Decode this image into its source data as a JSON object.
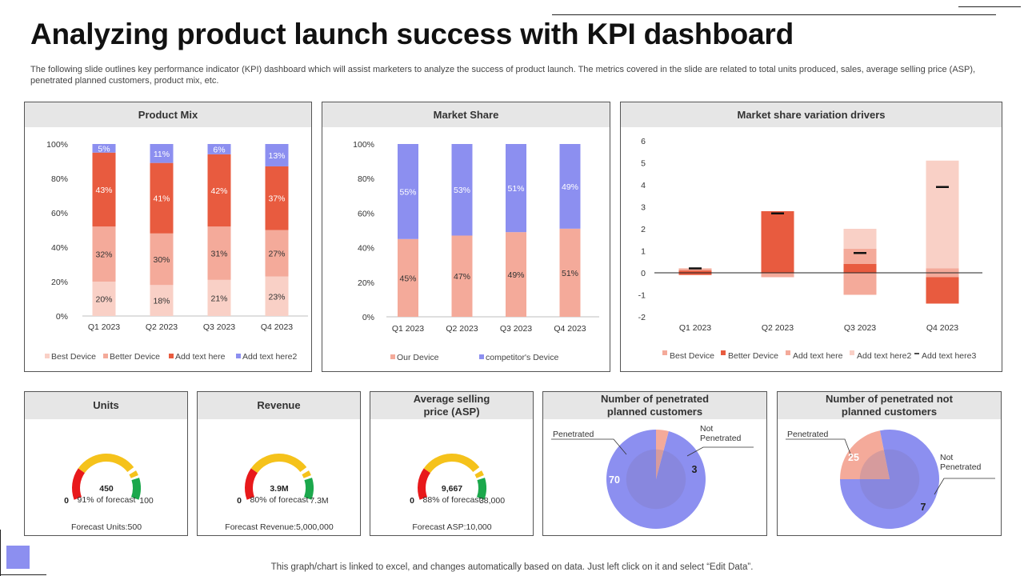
{
  "title": "Analyzing product launch success with KPI dashboard",
  "description": "The following slide outlines key performance indicator (KPI) dashboard which will assist marketers to analyze the success of product launch. The metrics covered in the slide are related to total units produced, sales, average selling price (ASP), penetrated planned customers, product mix, etc.",
  "footnote": "This graph/chart is linked to excel,  and changes automatically based on data. Just left click on it and select “Edit Data”.",
  "colors": {
    "best": "#f9d0c6",
    "better": "#f4aa9a",
    "text": "#e85b3f",
    "text2": "#8c8ff0",
    "gauge_red": "#e8191b",
    "gauge_yellow": "#f5c21b",
    "gauge_green": "#1ba84c",
    "header_bg": "#e6e6e6"
  },
  "chart_data": [
    {
      "id": "product-mix",
      "type": "bar",
      "stacked": true,
      "title": "Product Mix",
      "categories": [
        "Q1 2023",
        "Q2 2023",
        "Q3 2023",
        "Q4 2023"
      ],
      "series": [
        {
          "name": "Best Device",
          "values": [
            20,
            18,
            21,
            23
          ],
          "labels": [
            "20%",
            "18%",
            "21%",
            "23%"
          ],
          "color": "#f9d0c6"
        },
        {
          "name": "Better Device",
          "values": [
            32,
            30,
            31,
            27
          ],
          "labels": [
            "32%",
            "30%",
            "31%",
            "27%"
          ],
          "color": "#f4aa9a"
        },
        {
          "name": "Add text here",
          "values": [
            43,
            41,
            42,
            37
          ],
          "labels": [
            "43%",
            "41%",
            "42%",
            "37%"
          ],
          "color": "#e85b3f"
        },
        {
          "name": "Add text here2",
          "values": [
            5,
            11,
            6,
            13
          ],
          "labels": [
            "5%",
            "11%",
            "6%",
            "13%"
          ],
          "color": "#8c8ff0"
        }
      ],
      "y_ticks": [
        "0%",
        "20%",
        "40%",
        "60%",
        "80%",
        "100%"
      ],
      "ylim": [
        0,
        100
      ],
      "legend": "bottom"
    },
    {
      "id": "market-share",
      "type": "bar",
      "stacked": true,
      "title": "Market Share",
      "categories": [
        "Q1 2023",
        "Q2 2023",
        "Q3 2023",
        "Q4 2023"
      ],
      "series": [
        {
          "name": "Our Device",
          "values": [
            45,
            47,
            49,
            51
          ],
          "labels": [
            "45%",
            "47%",
            "49%",
            "51%"
          ],
          "color": "#f4aa9a"
        },
        {
          "name": "competitor's Device",
          "values": [
            55,
            53,
            51,
            49
          ],
          "labels": [
            "55%",
            "53%",
            "51%",
            "49%"
          ],
          "color": "#8c8ff0"
        }
      ],
      "y_ticks": [
        "0%",
        "20%",
        "40%",
        "60%",
        "80%",
        "100%"
      ],
      "ylim": [
        0,
        100
      ],
      "legend": "bottom"
    },
    {
      "id": "variation-drivers",
      "type": "bar",
      "title": "Market share variation drivers",
      "categories": [
        "Q1 2023",
        "Q2 2023",
        "Q3 2023",
        "Q4 2023"
      ],
      "ylim": [
        -2,
        6
      ],
      "y_ticks": [
        "-2",
        "-1",
        "0",
        "1",
        "2",
        "3",
        "4",
        "5",
        "6"
      ],
      "series": [
        {
          "name": "Best Device",
          "color": "#f4aa9a",
          "ranges": [
            [
              0,
              0.2
            ],
            [
              0,
              0
            ],
            [
              -1.0,
              0.4
            ],
            [
              0,
              0
            ]
          ]
        },
        {
          "name": "Better Device",
          "color": "#e85b3f",
          "ranges": [
            [
              -0.1,
              0.1
            ],
            [
              0,
              2.8
            ],
            [
              0,
              0.4
            ],
            [
              -1.4,
              -0.2
            ]
          ]
        },
        {
          "name": "Add text here",
          "color": "#f4aa9a",
          "ranges": [
            [
              0,
              0
            ],
            [
              -0.2,
              0
            ],
            [
              0.4,
              1.1
            ],
            [
              -0.2,
              0.2
            ]
          ]
        },
        {
          "name": "Add text here2",
          "color": "#f9d0c6",
          "ranges": [
            [
              0,
              0
            ],
            [
              0,
              0
            ],
            [
              1.1,
              2.0
            ],
            [
              0.2,
              5.1
            ]
          ]
        },
        {
          "name": "Add text here3",
          "type": "marker",
          "color": "#111111",
          "values": [
            0.2,
            2.7,
            0.9,
            3.9
          ]
        }
      ],
      "legend": "bottom"
    },
    {
      "id": "units-gauge",
      "type": "gauge",
      "title": "Units",
      "value_label": "450",
      "percent_label": "91% of forecast",
      "min_label": "0",
      "max_label": "100",
      "footer": "Forecast Units:500",
      "fraction": 0.91
    },
    {
      "id": "revenue-gauge",
      "type": "gauge",
      "title": "Revenue",
      "value_label": "3.9M",
      "percent_label": "80% of forecast",
      "min_label": "0",
      "max_label": "7.3M",
      "footer": "Forecast Revenue:5,000,000",
      "fraction": 0.8
    },
    {
      "id": "asp-gauge",
      "type": "gauge",
      "title": "Average selling price (ASP)",
      "title_lines": [
        "Average selling",
        "price (ASP)"
      ],
      "value_label": "9,667",
      "percent_label": "88% of forecast",
      "min_label": "0",
      "max_label": "38,000",
      "footer": "Forecast ASP:10,000",
      "fraction": 0.88
    },
    {
      "id": "planned-pie",
      "type": "pie",
      "title": "Number of penetrated planned customers",
      "title_lines": [
        "Number of penetrated",
        "planned customers"
      ],
      "slices": [
        {
          "name": "Penetrated",
          "value": 70,
          "label": "70",
          "color": "#8c8ff0"
        },
        {
          "name": "Not Penetrated",
          "value": 3,
          "label": "3",
          "color": "#f4aa9a"
        }
      ]
    },
    {
      "id": "not-planned-pie",
      "type": "pie",
      "title": "Number of penetrated not planned customers",
      "title_lines": [
        "Number of penetrated not",
        "planned customers"
      ],
      "slices": [
        {
          "name": "Penetrated",
          "value": 25,
          "label": "25",
          "color": "#8c8ff0"
        },
        {
          "name": "Not Penetrated",
          "value": 7,
          "label": "7",
          "color": "#f4aa9a"
        }
      ]
    }
  ]
}
